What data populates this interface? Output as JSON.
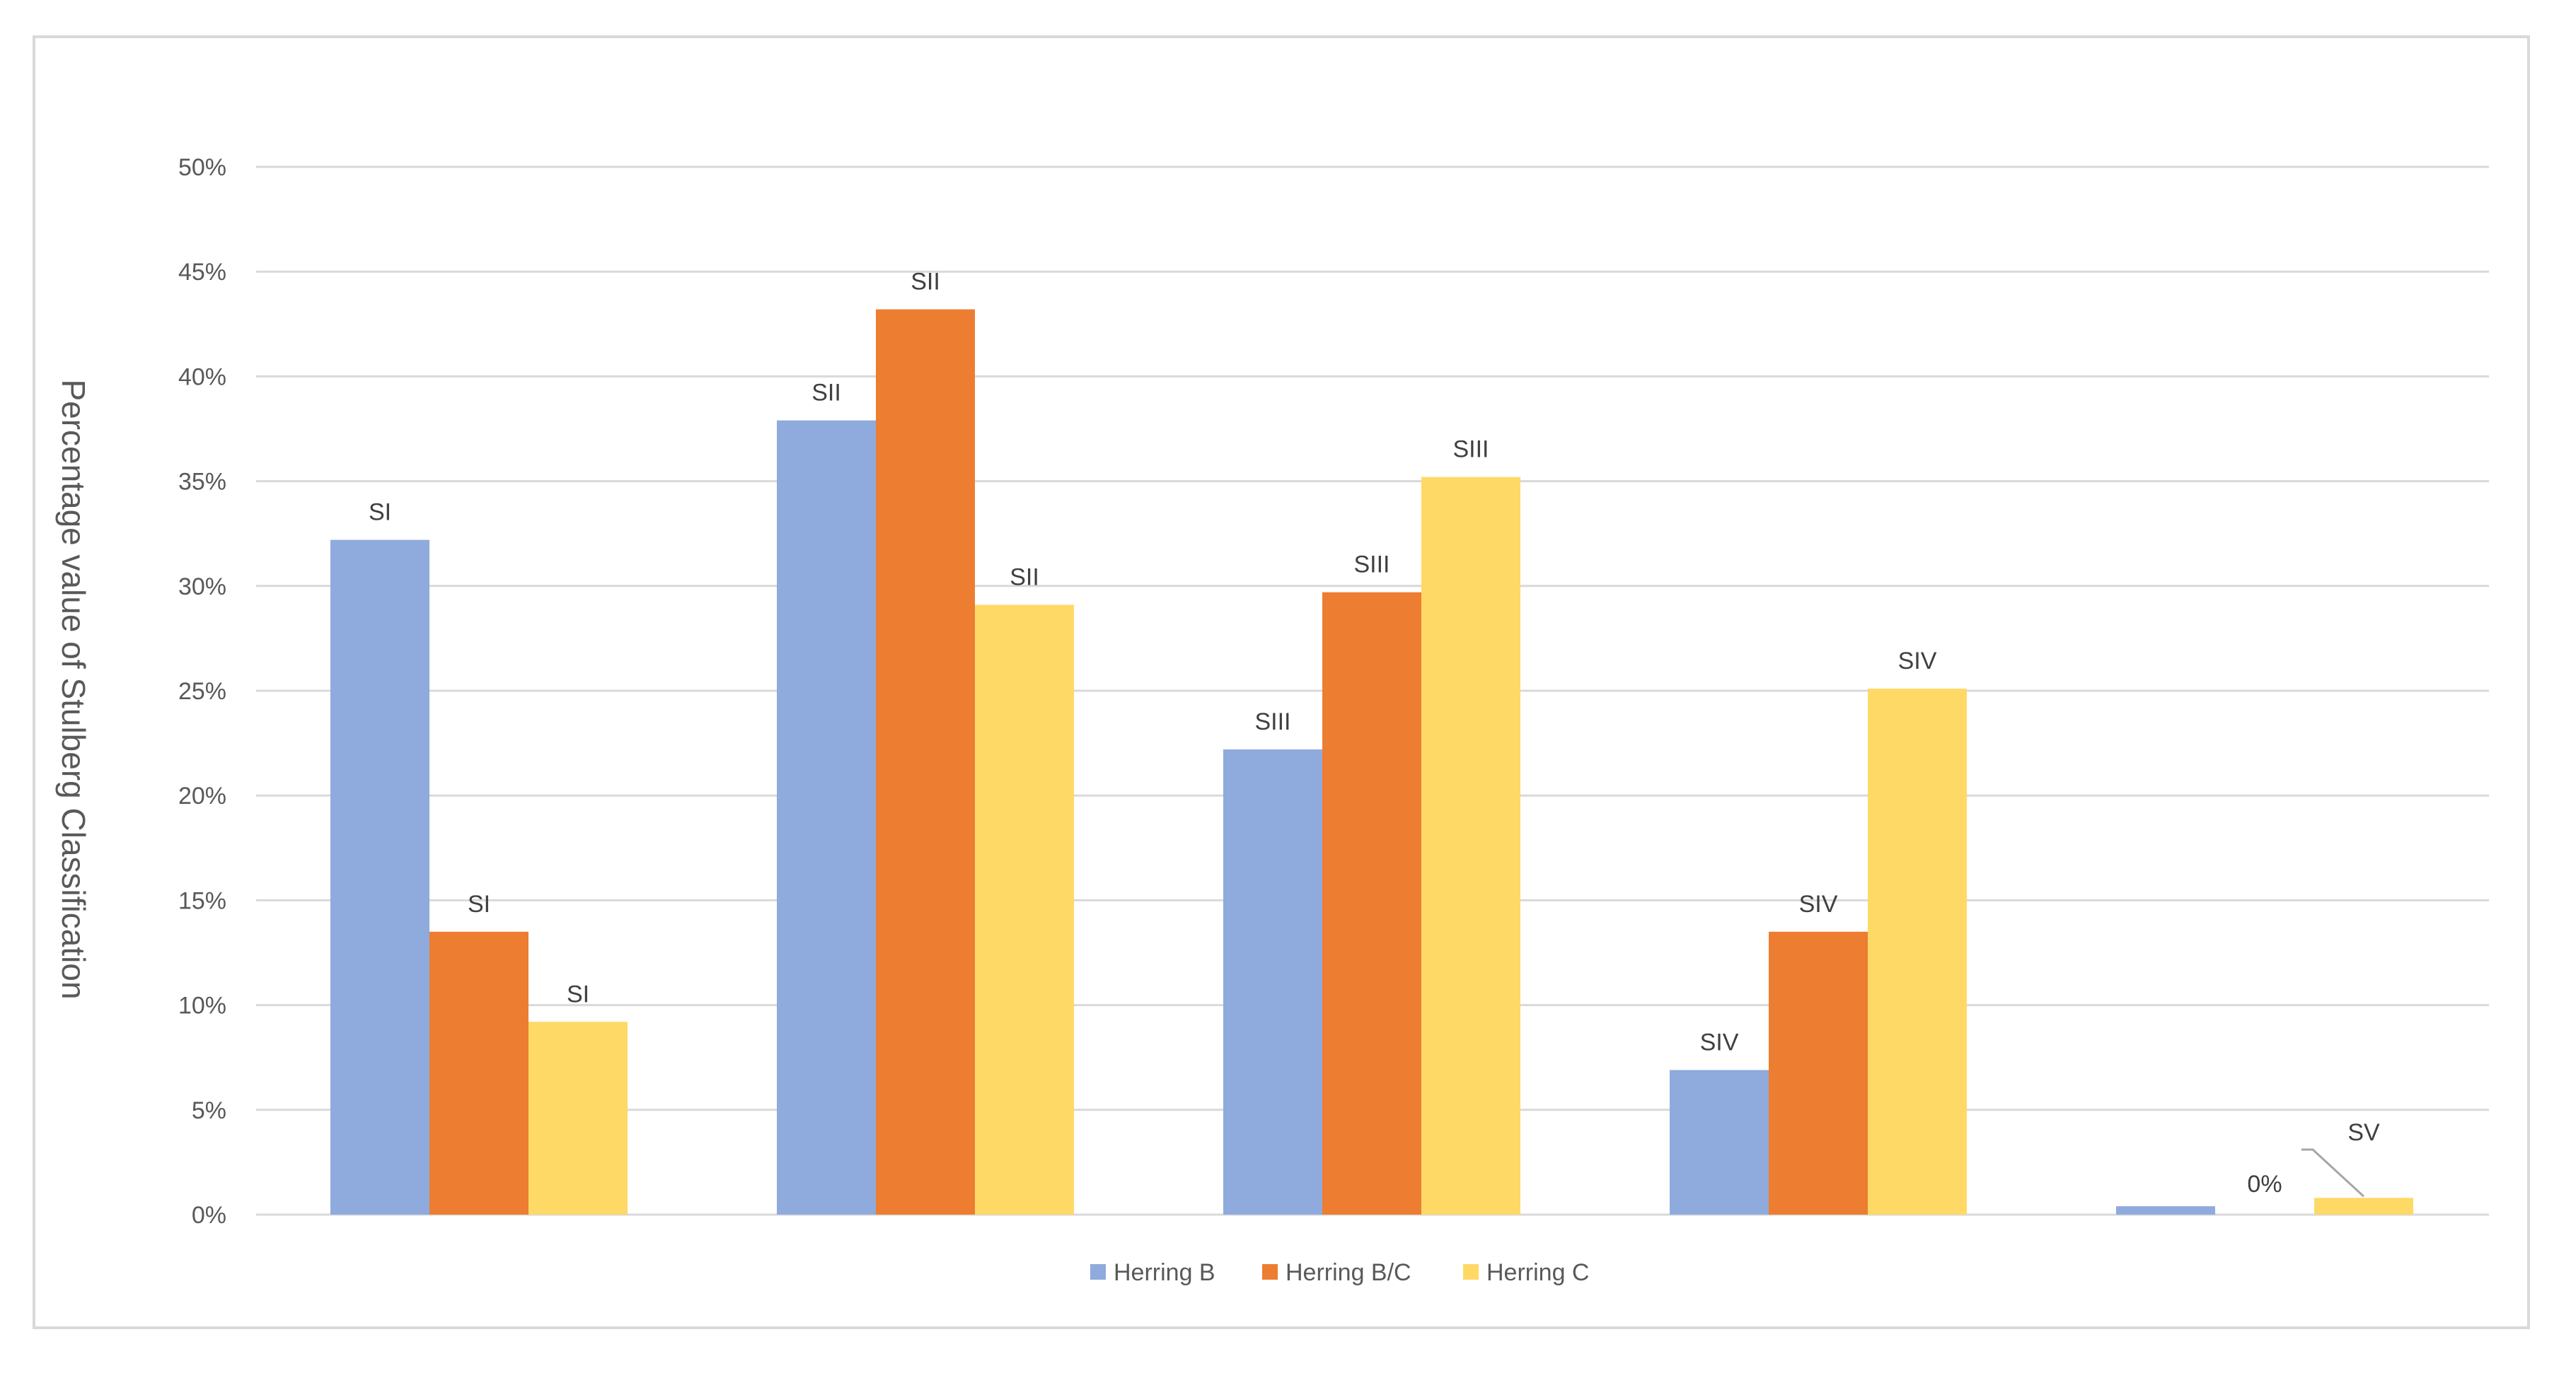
{
  "chart_data": {
    "type": "bar",
    "title": "",
    "xlabel": "",
    "ylabel": "Percentage value of Stulberg Classification",
    "ylim": [
      0,
      50
    ],
    "ytick_values": [
      0,
      5,
      10,
      15,
      20,
      25,
      30,
      35,
      40,
      45,
      50
    ],
    "ytick_labels": [
      "0%",
      "5%",
      "10%",
      "15%",
      "20%",
      "25%",
      "30%",
      "35%",
      "40%",
      "45%",
      "50%"
    ],
    "grid": true,
    "legend_position": "bottom",
    "categories": [
      "",
      "",
      "",
      "",
      ""
    ],
    "series": [
      {
        "name": "Herring B",
        "color": "#8faadc",
        "values": [
          32.2,
          37.9,
          22.2,
          6.9,
          0.4
        ],
        "labels": [
          "SI",
          "SII",
          "SIII",
          "SIV",
          ""
        ]
      },
      {
        "name": "Herring B/C",
        "color": "#ed7d31",
        "values": [
          13.5,
          43.2,
          29.7,
          13.5,
          0
        ],
        "labels": [
          "SI",
          "SII",
          "SIII",
          "SIV",
          "0%"
        ]
      },
      {
        "name": "Herring C",
        "color": "#ffd966",
        "values": [
          9.2,
          29.1,
          35.2,
          25.1,
          0.8
        ],
        "labels": [
          "SI",
          "SII",
          "SIII",
          "SIV",
          "SV"
        ]
      }
    ]
  }
}
